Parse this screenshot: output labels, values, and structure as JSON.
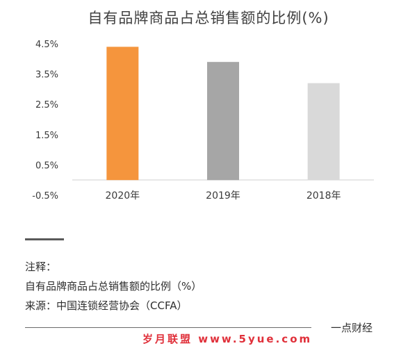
{
  "chart_data": {
    "type": "bar",
    "title": "自有品牌商品占总销售额的比例(%)",
    "categories": [
      "2020年",
      "2019年",
      "2018年"
    ],
    "values": [
      4.4,
      3.9,
      3.2
    ],
    "colors": [
      "#f5953d",
      "#a6a6a6",
      "#d9d9d9"
    ],
    "yticks": [
      "4.5%",
      "3.5%",
      "2.5%",
      "1.5%",
      "0.5%",
      "-0.5%"
    ],
    "ytick_values": [
      4.5,
      3.5,
      2.5,
      1.5,
      0.5,
      -0.5
    ],
    "ylim": [
      -0.5,
      4.5
    ],
    "baseline": 0,
    "grid": false,
    "xlabel": "",
    "ylabel": ""
  },
  "notes": {
    "label": "注释：",
    "line1": "自有品牌商品占总销售额的比例（%）",
    "line2": "来源：中国连锁经营协会（CCFA）"
  },
  "footer": {
    "brand": "一点财经",
    "watermark": "岁月联盟 www.5yue.com"
  }
}
